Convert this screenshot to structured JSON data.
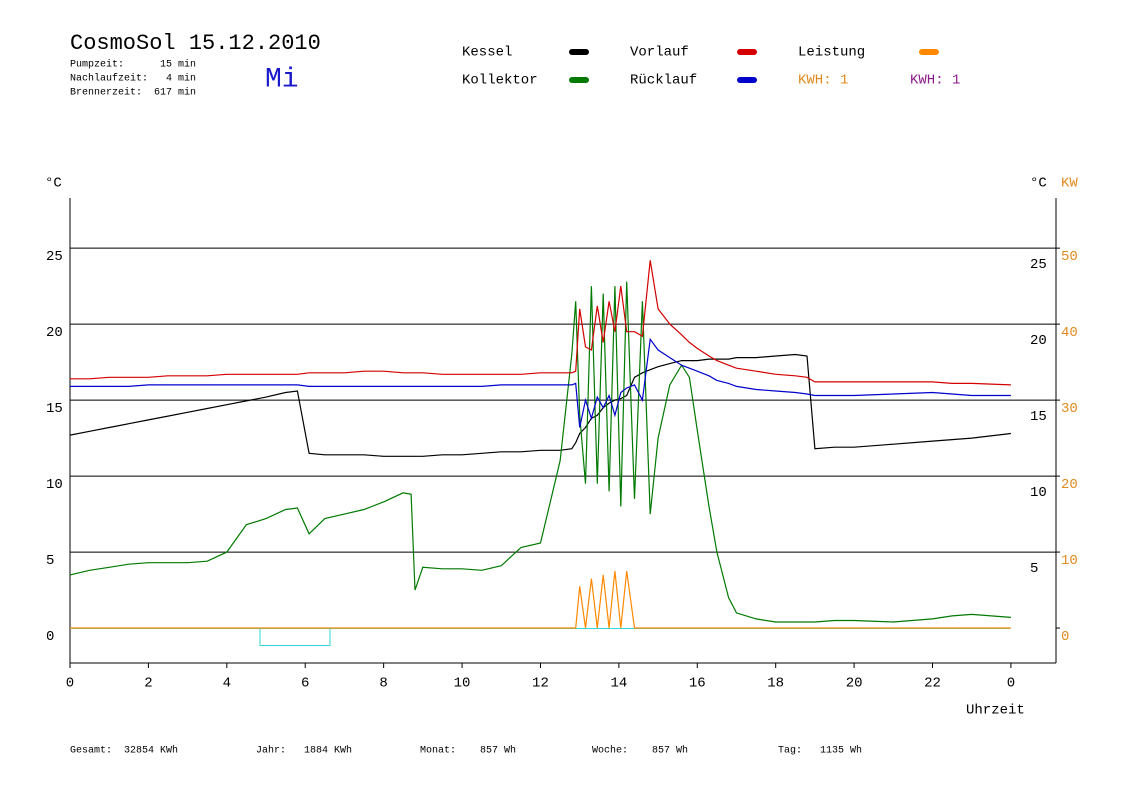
{
  "chart_data": {
    "type": "line",
    "title": "CosmoSol 15.12.2010",
    "info": [
      "Pumpzeit:      15 min",
      "Nachlaufzeit:   4 min",
      "Brennerzeit:  617 min"
    ],
    "weekday": "Mi",
    "kwh_labels": [
      {
        "text": "KWH: 1",
        "color": "#e08a1e"
      },
      {
        "text": "KWH: 1",
        "color": "#8b1a8b"
      }
    ],
    "y_label": "°C",
    "y2_labels": [
      "°C",
      "KW"
    ],
    "x_label": "Uhrzeit",
    "footer": [
      "Gesamt:  32854 KWh",
      "Jahr:   1884 KWh",
      "Monat:    857 Wh",
      "Woche:    857 Wh",
      "Tag:   1135 Wh"
    ],
    "xlim": [
      0,
      25.15
    ],
    "xticks": [
      0,
      2,
      4,
      6,
      8,
      10,
      12,
      14,
      16,
      18,
      20,
      22,
      {
        "value": 24,
        "label": "0"
      }
    ],
    "ylim": [
      -2.3,
      28.3
    ],
    "yticks": [
      0,
      5,
      10,
      15,
      20,
      25
    ],
    "y2lim": [
      -4.6,
      56.6
    ],
    "y2ticks": [
      0,
      10,
      20,
      30,
      40,
      50
    ],
    "grid": true,
    "x": [
      0,
      0.5,
      1,
      1.5,
      2,
      2.5,
      3,
      3.5,
      4,
      4.5,
      5,
      5.5,
      5.8,
      6.1,
      6.5,
      7,
      7.5,
      8,
      8.5,
      8.7,
      8.8,
      9,
      9.5,
      10,
      10.5,
      11,
      11.5,
      12,
      12.5,
      12.8,
      12.9,
      13.0,
      13.15,
      13.3,
      13.45,
      13.6,
      13.75,
      13.9,
      14.05,
      14.2,
      14.4,
      14.6,
      14.8,
      15.0,
      15.3,
      15.6,
      15.8,
      16,
      16.3,
      16.5,
      16.8,
      17,
      17.5,
      18,
      18.5,
      18.8,
      19,
      19.5,
      20,
      21,
      22,
      22.5,
      23,
      24
    ],
    "series": [
      {
        "name": "Kessel",
        "color": "#000000",
        "values": [
          12.7,
          12.95,
          13.2,
          13.45,
          13.7,
          13.95,
          14.2,
          14.45,
          14.7,
          14.95,
          15.2,
          15.5,
          15.6,
          11.5,
          11.4,
          11.4,
          11.4,
          11.3,
          11.3,
          11.3,
          11.3,
          11.3,
          11.4,
          11.4,
          11.5,
          11.6,
          11.6,
          11.7,
          11.7,
          11.8,
          12.2,
          12.8,
          13.2,
          13.8,
          14.0,
          14.5,
          14.8,
          15.0,
          15.1,
          15.3,
          16.5,
          16.8,
          17.0,
          17.2,
          17.4,
          17.6,
          17.6,
          17.6,
          17.7,
          17.7,
          17.7,
          17.8,
          17.8,
          17.9,
          18.0,
          17.9,
          11.8,
          11.9,
          11.9,
          12.1,
          12.3,
          12.4,
          12.5,
          12.8
        ]
      },
      {
        "name": "Kollektor",
        "color": "#007a00",
        "values": [
          3.5,
          3.8,
          4.0,
          4.2,
          4.3,
          4.3,
          4.3,
          4.4,
          5.0,
          6.8,
          7.2,
          7.8,
          7.9,
          6.2,
          7.2,
          7.5,
          7.8,
          8.3,
          8.9,
          8.8,
          2.5,
          4.0,
          3.9,
          3.9,
          3.8,
          4.1,
          5.3,
          5.6,
          11,
          18,
          21.5,
          14,
          9.5,
          22.5,
          9.5,
          22,
          9.0,
          22.5,
          8.0,
          22.8,
          8.5,
          21.5,
          7.5,
          12.5,
          16.0,
          17.3,
          16.5,
          13,
          8,
          5,
          2,
          1.0,
          0.6,
          0.4,
          0.4,
          0.4,
          0.4,
          0.5,
          0.5,
          0.4,
          0.6,
          0.8,
          0.9,
          0.7
        ]
      },
      {
        "name": "Vorlauf",
        "color": "#d40000",
        "values": [
          16.4,
          16.4,
          16.5,
          16.5,
          16.5,
          16.6,
          16.6,
          16.6,
          16.7,
          16.7,
          16.7,
          16.7,
          16.7,
          16.8,
          16.8,
          16.8,
          16.9,
          16.9,
          16.8,
          16.8,
          16.8,
          16.8,
          16.7,
          16.7,
          16.7,
          16.7,
          16.7,
          16.8,
          16.8,
          16.8,
          16.9,
          21.0,
          18.5,
          18.3,
          21.2,
          18.8,
          21.5,
          19.5,
          22.5,
          19.5,
          19.5,
          19.2,
          24.2,
          21.0,
          20.0,
          19.3,
          18.8,
          18.4,
          17.9,
          17.6,
          17.3,
          17.1,
          16.9,
          16.7,
          16.6,
          16.5,
          16.2,
          16.2,
          16.2,
          16.2,
          16.2,
          16.1,
          16.1,
          16.0
        ]
      },
      {
        "name": "Rücklauf",
        "color": "#0000cc",
        "values": [
          15.9,
          15.9,
          15.9,
          15.9,
          16.0,
          16.0,
          16.0,
          16.0,
          16.0,
          16.0,
          16.0,
          16.0,
          16.0,
          15.9,
          15.9,
          15.9,
          15.9,
          15.9,
          15.9,
          15.9,
          15.9,
          15.9,
          15.9,
          15.9,
          15.9,
          16.0,
          16.0,
          16.0,
          16.0,
          16.0,
          16.1,
          13.2,
          15.0,
          13.8,
          15.2,
          14.5,
          15.3,
          14.0,
          15.5,
          15.8,
          16.0,
          15.0,
          19.0,
          18.3,
          17.8,
          17.3,
          17.1,
          16.9,
          16.6,
          16.3,
          16.1,
          15.9,
          15.7,
          15.6,
          15.5,
          15.4,
          15.3,
          15.3,
          15.3,
          15.4,
          15.5,
          15.4,
          15.3,
          15.3
        ]
      },
      {
        "name": "Leistung",
        "color": "#ff8800",
        "axis": "y2",
        "values": [
          0,
          0,
          0,
          0,
          0,
          0,
          0,
          0,
          0,
          0,
          0,
          0,
          0,
          0,
          0,
          0,
          0,
          0,
          0,
          0,
          0,
          0,
          0,
          0,
          0,
          0,
          0,
          0,
          0,
          0,
          0,
          5.5,
          0,
          6.5,
          0,
          7,
          0,
          7.5,
          0,
          7.5,
          0,
          0,
          0,
          0,
          0,
          0,
          0,
          0,
          0,
          0,
          0,
          0,
          0,
          0,
          0,
          0,
          0,
          0,
          0,
          0,
          0,
          0,
          0,
          0
        ]
      }
    ]
  }
}
